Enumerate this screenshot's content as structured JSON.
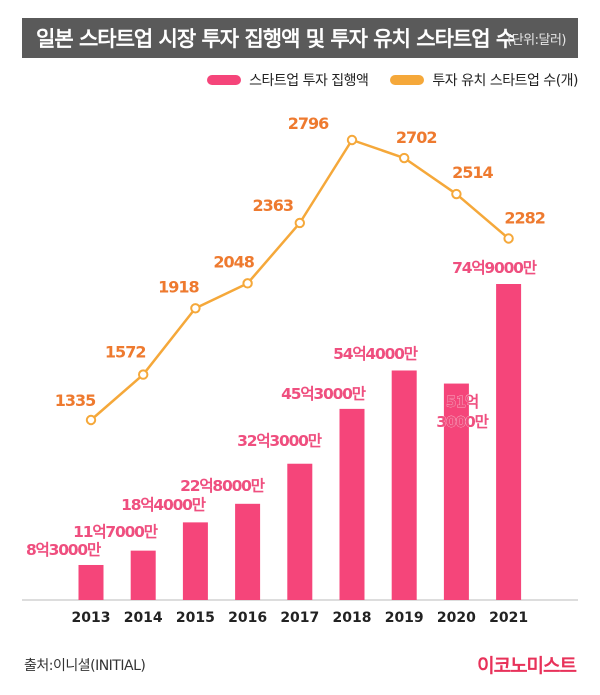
{
  "title": "일본 스타트업 시장 투자 집행액 및 투자 유치 스타트업 수",
  "unit": "(단위:달러)",
  "source": "출처:이니셜(INITIAL)",
  "brand": "이코노미스트",
  "colors": {
    "bar": "#f5457a",
    "line": "#f5a83a",
    "bar_label": "#ef4f7f",
    "line_label": "#ee7a2f",
    "title_bg": "#5a5a5a"
  },
  "chart_data": {
    "type": "bar+line",
    "categories": [
      "2013",
      "2014",
      "2015",
      "2016",
      "2017",
      "2018",
      "2019",
      "2020",
      "2021"
    ],
    "series": [
      {
        "name": "스타트업 투자 집행액",
        "type": "bar",
        "values": [
          830000000,
          1170000000,
          1840000000,
          2280000000,
          3230000000,
          4530000000,
          5440000000,
          5130000000,
          7490000000
        ],
        "labels": [
          "8억3000만",
          "11억7000만",
          "18억4000만",
          "22억8000만",
          "32억3000만",
          "45억3000만",
          "54억4000만",
          "51억\n3000만",
          "74억9000만"
        ]
      },
      {
        "name": "투자 유치 스타트업 수(개)",
        "type": "line",
        "values": [
          1335,
          1572,
          1918,
          2048,
          2363,
          2796,
          2702,
          2514,
          2282
        ]
      }
    ]
  }
}
